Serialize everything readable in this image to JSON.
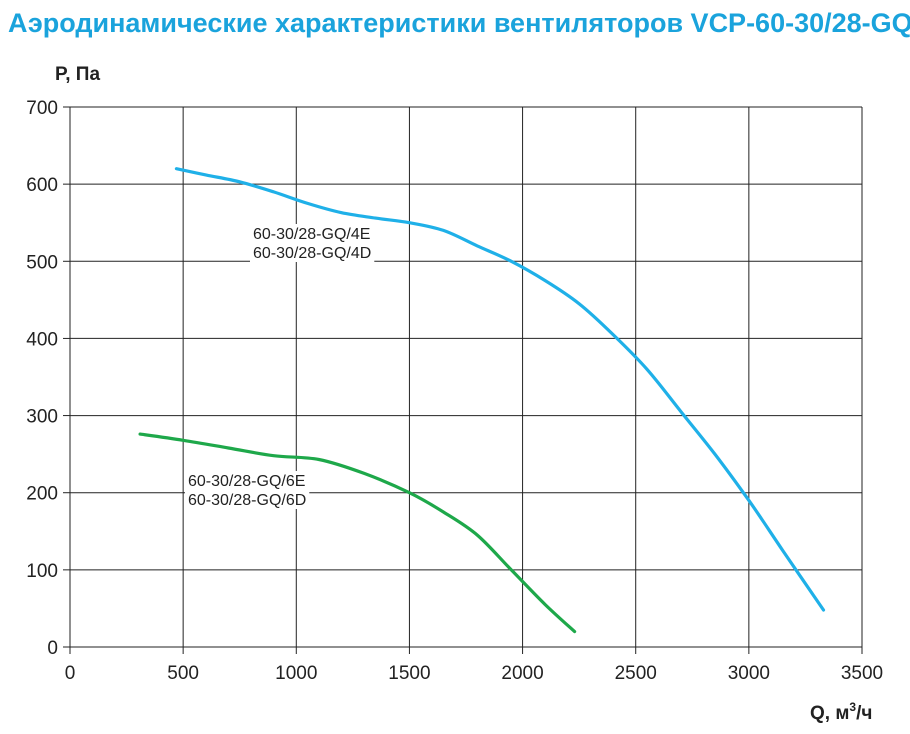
{
  "page": {
    "title": "Аэродинамические характеристики вентиляторов VCP-60-30/28-GQ"
  },
  "chart_data": {
    "type": "line",
    "xlabel_main": "Q, м",
    "xlabel_sup": "3",
    "xlabel_tail": "/ч",
    "ylabel": "P, Па",
    "xlim": [
      0,
      3500
    ],
    "ylim": [
      0,
      700
    ],
    "xticks": [
      0,
      500,
      1000,
      1500,
      2000,
      2500,
      3000,
      3500
    ],
    "yticks": [
      0,
      100,
      200,
      300,
      400,
      500,
      600,
      700
    ],
    "grid": true,
    "series": [
      {
        "labels": [
          "60-30/28-GQ/4E",
          "60-30/28-GQ/4D"
        ],
        "color": "#1fb0e8",
        "x": [
          470,
          600,
          750,
          900,
          1050,
          1200,
          1350,
          1500,
          1650,
          1800,
          1950,
          2100,
          2250,
          2400,
          2550,
          2700,
          2850,
          3000,
          3150,
          3330
        ],
        "y": [
          620,
          612,
          603,
          590,
          575,
          563,
          556,
          550,
          540,
          520,
          500,
          475,
          445,
          405,
          360,
          305,
          250,
          190,
          125,
          48
        ]
      },
      {
        "labels": [
          "60-30/28-GQ/6E",
          "60-30/28-GQ/6D"
        ],
        "color": "#1ea84a",
        "x": [
          310,
          500,
          700,
          900,
          1100,
          1300,
          1500,
          1650,
          1800,
          1950,
          2100,
          2230
        ],
        "y": [
          276,
          268,
          258,
          248,
          243,
          225,
          200,
          175,
          145,
          100,
          55,
          20
        ]
      }
    ]
  }
}
